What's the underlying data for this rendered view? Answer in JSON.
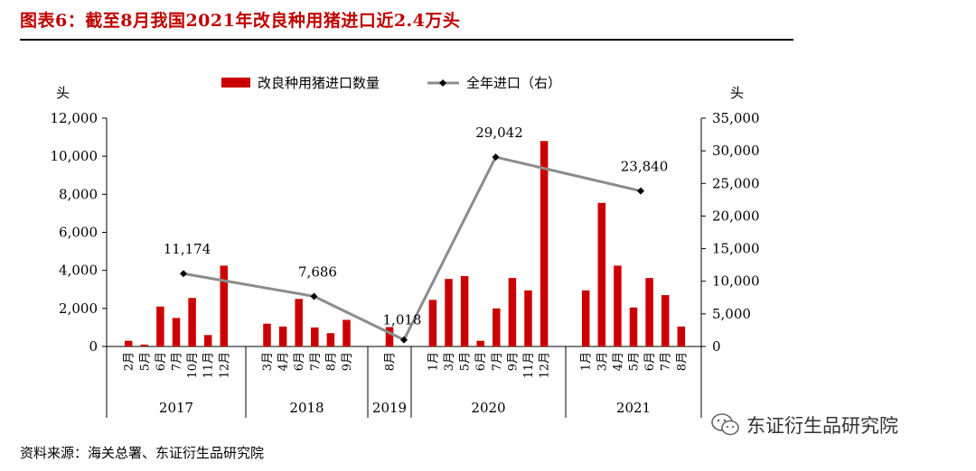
{
  "title": "图表6：截至8月我国2021年改良种用猪进口近2.4万头",
  "source": "资料来源：海关总署、东证衍生品研究院",
  "watermark": "东证衍生品研究院",
  "watermark_icon": "wechat-icon",
  "colors": {
    "bar": "#cc0000",
    "line": "#8c8c8c",
    "title": "#c00000"
  },
  "chart_data": {
    "type": "bar",
    "left_axis": {
      "unit": "头",
      "ylim": [
        0,
        12000
      ],
      "ticks": [
        "0",
        "2,000",
        "4,000",
        "6,000",
        "8,000",
        "10,000",
        "12,000"
      ]
    },
    "right_axis": {
      "unit": "头",
      "ylim": [
        0,
        35000
      ],
      "ticks": [
        "0",
        "5,000",
        "10,000",
        "15,000",
        "20,000",
        "25,000",
        "30,000",
        "35,000"
      ]
    },
    "legend": {
      "bar_label": "改良种用猪进口数量",
      "line_label": "全年进口（右）",
      "position": "top-center"
    },
    "groups": [
      {
        "year": "2017",
        "months": [
          "2月",
          "5月",
          "6月",
          "7月",
          "10月",
          "11月",
          "12月"
        ],
        "values": [
          300,
          100,
          2100,
          1500,
          2550,
          600,
          4250
        ],
        "annual": 11174,
        "annual_label": "11,174"
      },
      {
        "year": "2018",
        "months": [
          "3月",
          "4月",
          "6月",
          "7月",
          "8月",
          "9月"
        ],
        "values": [
          1200,
          1050,
          2500,
          1000,
          700,
          1400
        ],
        "annual": 7686,
        "annual_label": "7,686"
      },
      {
        "year": "2019",
        "months": [
          "8月"
        ],
        "values": [
          1018
        ],
        "annual": 1018,
        "annual_label": "1,018"
      },
      {
        "year": "2020",
        "months": [
          "1月",
          "3月",
          "5月",
          "6月",
          "7月",
          "9月",
          "11月",
          "12月"
        ],
        "values": [
          2450,
          3550,
          3700,
          300,
          2000,
          3600,
          2950,
          10800
        ],
        "annual": 29042,
        "annual_label": "29,042"
      },
      {
        "year": "2021",
        "months": [
          "1月",
          "3月",
          "4月",
          "5月",
          "6月",
          "7月",
          "8月"
        ],
        "values": [
          2950,
          7550,
          4250,
          2050,
          3600,
          2700,
          1050
        ],
        "annual": 23840,
        "annual_label": "23,840"
      }
    ]
  }
}
